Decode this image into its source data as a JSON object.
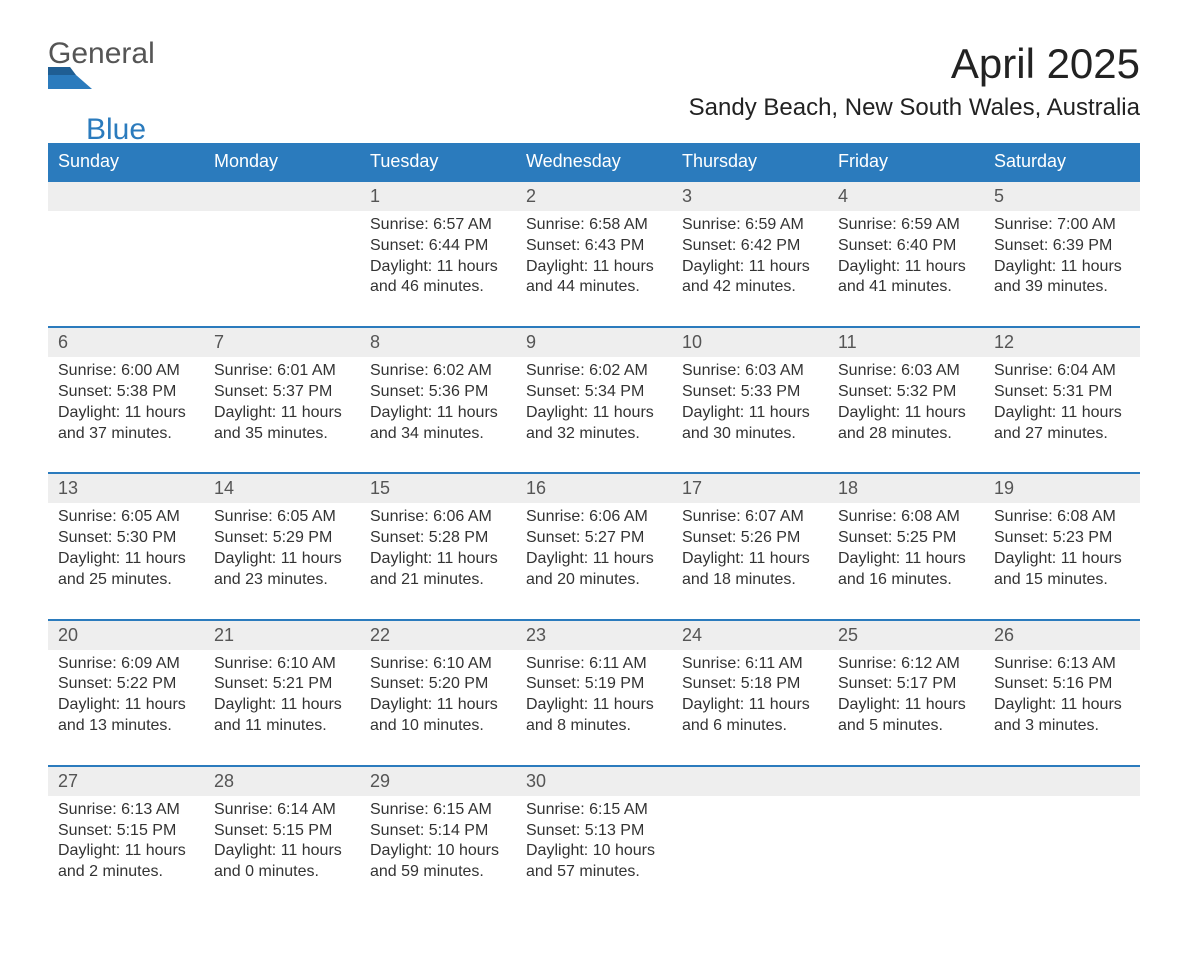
{
  "logo": {
    "general": "General",
    "blue": "Blue",
    "mark_color": "#2b7bbd"
  },
  "title": "April 2025",
  "location": "Sandy Beach, New South Wales, Australia",
  "colors": {
    "header_bg": "#2b7bbd",
    "header_text": "#ffffff",
    "daynum_bg": "#eeeeee",
    "rule": "#2b7bbd",
    "body_text": "#333333",
    "page_bg": "#ffffff"
  },
  "typography": {
    "title_fontsize": 42,
    "location_fontsize": 24,
    "header_fontsize": 18,
    "daynum_fontsize": 18,
    "body_fontsize": 16,
    "logo_fontsize": 30
  },
  "layout": {
    "columns": 7,
    "weeks": 5
  },
  "weekdays": [
    "Sunday",
    "Monday",
    "Tuesday",
    "Wednesday",
    "Thursday",
    "Friday",
    "Saturday"
  ],
  "weeks": [
    [
      {
        "day": "",
        "sunrise": "",
        "sunset": "",
        "daylight1": "",
        "daylight2": ""
      },
      {
        "day": "",
        "sunrise": "",
        "sunset": "",
        "daylight1": "",
        "daylight2": ""
      },
      {
        "day": "1",
        "sunrise": "Sunrise: 6:57 AM",
        "sunset": "Sunset: 6:44 PM",
        "daylight1": "Daylight: 11 hours",
        "daylight2": "and 46 minutes."
      },
      {
        "day": "2",
        "sunrise": "Sunrise: 6:58 AM",
        "sunset": "Sunset: 6:43 PM",
        "daylight1": "Daylight: 11 hours",
        "daylight2": "and 44 minutes."
      },
      {
        "day": "3",
        "sunrise": "Sunrise: 6:59 AM",
        "sunset": "Sunset: 6:42 PM",
        "daylight1": "Daylight: 11 hours",
        "daylight2": "and 42 minutes."
      },
      {
        "day": "4",
        "sunrise": "Sunrise: 6:59 AM",
        "sunset": "Sunset: 6:40 PM",
        "daylight1": "Daylight: 11 hours",
        "daylight2": "and 41 minutes."
      },
      {
        "day": "5",
        "sunrise": "Sunrise: 7:00 AM",
        "sunset": "Sunset: 6:39 PM",
        "daylight1": "Daylight: 11 hours",
        "daylight2": "and 39 minutes."
      }
    ],
    [
      {
        "day": "6",
        "sunrise": "Sunrise: 6:00 AM",
        "sunset": "Sunset: 5:38 PM",
        "daylight1": "Daylight: 11 hours",
        "daylight2": "and 37 minutes."
      },
      {
        "day": "7",
        "sunrise": "Sunrise: 6:01 AM",
        "sunset": "Sunset: 5:37 PM",
        "daylight1": "Daylight: 11 hours",
        "daylight2": "and 35 minutes."
      },
      {
        "day": "8",
        "sunrise": "Sunrise: 6:02 AM",
        "sunset": "Sunset: 5:36 PM",
        "daylight1": "Daylight: 11 hours",
        "daylight2": "and 34 minutes."
      },
      {
        "day": "9",
        "sunrise": "Sunrise: 6:02 AM",
        "sunset": "Sunset: 5:34 PM",
        "daylight1": "Daylight: 11 hours",
        "daylight2": "and 32 minutes."
      },
      {
        "day": "10",
        "sunrise": "Sunrise: 6:03 AM",
        "sunset": "Sunset: 5:33 PM",
        "daylight1": "Daylight: 11 hours",
        "daylight2": "and 30 minutes."
      },
      {
        "day": "11",
        "sunrise": "Sunrise: 6:03 AM",
        "sunset": "Sunset: 5:32 PM",
        "daylight1": "Daylight: 11 hours",
        "daylight2": "and 28 minutes."
      },
      {
        "day": "12",
        "sunrise": "Sunrise: 6:04 AM",
        "sunset": "Sunset: 5:31 PM",
        "daylight1": "Daylight: 11 hours",
        "daylight2": "and 27 minutes."
      }
    ],
    [
      {
        "day": "13",
        "sunrise": "Sunrise: 6:05 AM",
        "sunset": "Sunset: 5:30 PM",
        "daylight1": "Daylight: 11 hours",
        "daylight2": "and 25 minutes."
      },
      {
        "day": "14",
        "sunrise": "Sunrise: 6:05 AM",
        "sunset": "Sunset: 5:29 PM",
        "daylight1": "Daylight: 11 hours",
        "daylight2": "and 23 minutes."
      },
      {
        "day": "15",
        "sunrise": "Sunrise: 6:06 AM",
        "sunset": "Sunset: 5:28 PM",
        "daylight1": "Daylight: 11 hours",
        "daylight2": "and 21 minutes."
      },
      {
        "day": "16",
        "sunrise": "Sunrise: 6:06 AM",
        "sunset": "Sunset: 5:27 PM",
        "daylight1": "Daylight: 11 hours",
        "daylight2": "and 20 minutes."
      },
      {
        "day": "17",
        "sunrise": "Sunrise: 6:07 AM",
        "sunset": "Sunset: 5:26 PM",
        "daylight1": "Daylight: 11 hours",
        "daylight2": "and 18 minutes."
      },
      {
        "day": "18",
        "sunrise": "Sunrise: 6:08 AM",
        "sunset": "Sunset: 5:25 PM",
        "daylight1": "Daylight: 11 hours",
        "daylight2": "and 16 minutes."
      },
      {
        "day": "19",
        "sunrise": "Sunrise: 6:08 AM",
        "sunset": "Sunset: 5:23 PM",
        "daylight1": "Daylight: 11 hours",
        "daylight2": "and 15 minutes."
      }
    ],
    [
      {
        "day": "20",
        "sunrise": "Sunrise: 6:09 AM",
        "sunset": "Sunset: 5:22 PM",
        "daylight1": "Daylight: 11 hours",
        "daylight2": "and 13 minutes."
      },
      {
        "day": "21",
        "sunrise": "Sunrise: 6:10 AM",
        "sunset": "Sunset: 5:21 PM",
        "daylight1": "Daylight: 11 hours",
        "daylight2": "and 11 minutes."
      },
      {
        "day": "22",
        "sunrise": "Sunrise: 6:10 AM",
        "sunset": "Sunset: 5:20 PM",
        "daylight1": "Daylight: 11 hours",
        "daylight2": "and 10 minutes."
      },
      {
        "day": "23",
        "sunrise": "Sunrise: 6:11 AM",
        "sunset": "Sunset: 5:19 PM",
        "daylight1": "Daylight: 11 hours",
        "daylight2": "and 8 minutes."
      },
      {
        "day": "24",
        "sunrise": "Sunrise: 6:11 AM",
        "sunset": "Sunset: 5:18 PM",
        "daylight1": "Daylight: 11 hours",
        "daylight2": "and 6 minutes."
      },
      {
        "day": "25",
        "sunrise": "Sunrise: 6:12 AM",
        "sunset": "Sunset: 5:17 PM",
        "daylight1": "Daylight: 11 hours",
        "daylight2": "and 5 minutes."
      },
      {
        "day": "26",
        "sunrise": "Sunrise: 6:13 AM",
        "sunset": "Sunset: 5:16 PM",
        "daylight1": "Daylight: 11 hours",
        "daylight2": "and 3 minutes."
      }
    ],
    [
      {
        "day": "27",
        "sunrise": "Sunrise: 6:13 AM",
        "sunset": "Sunset: 5:15 PM",
        "daylight1": "Daylight: 11 hours",
        "daylight2": "and 2 minutes."
      },
      {
        "day": "28",
        "sunrise": "Sunrise: 6:14 AM",
        "sunset": "Sunset: 5:15 PM",
        "daylight1": "Daylight: 11 hours",
        "daylight2": "and 0 minutes."
      },
      {
        "day": "29",
        "sunrise": "Sunrise: 6:15 AM",
        "sunset": "Sunset: 5:14 PM",
        "daylight1": "Daylight: 10 hours",
        "daylight2": "and 59 minutes."
      },
      {
        "day": "30",
        "sunrise": "Sunrise: 6:15 AM",
        "sunset": "Sunset: 5:13 PM",
        "daylight1": "Daylight: 10 hours",
        "daylight2": "and 57 minutes."
      },
      {
        "day": "",
        "sunrise": "",
        "sunset": "",
        "daylight1": "",
        "daylight2": ""
      },
      {
        "day": "",
        "sunrise": "",
        "sunset": "",
        "daylight1": "",
        "daylight2": ""
      },
      {
        "day": "",
        "sunrise": "",
        "sunset": "",
        "daylight1": "",
        "daylight2": ""
      }
    ]
  ]
}
